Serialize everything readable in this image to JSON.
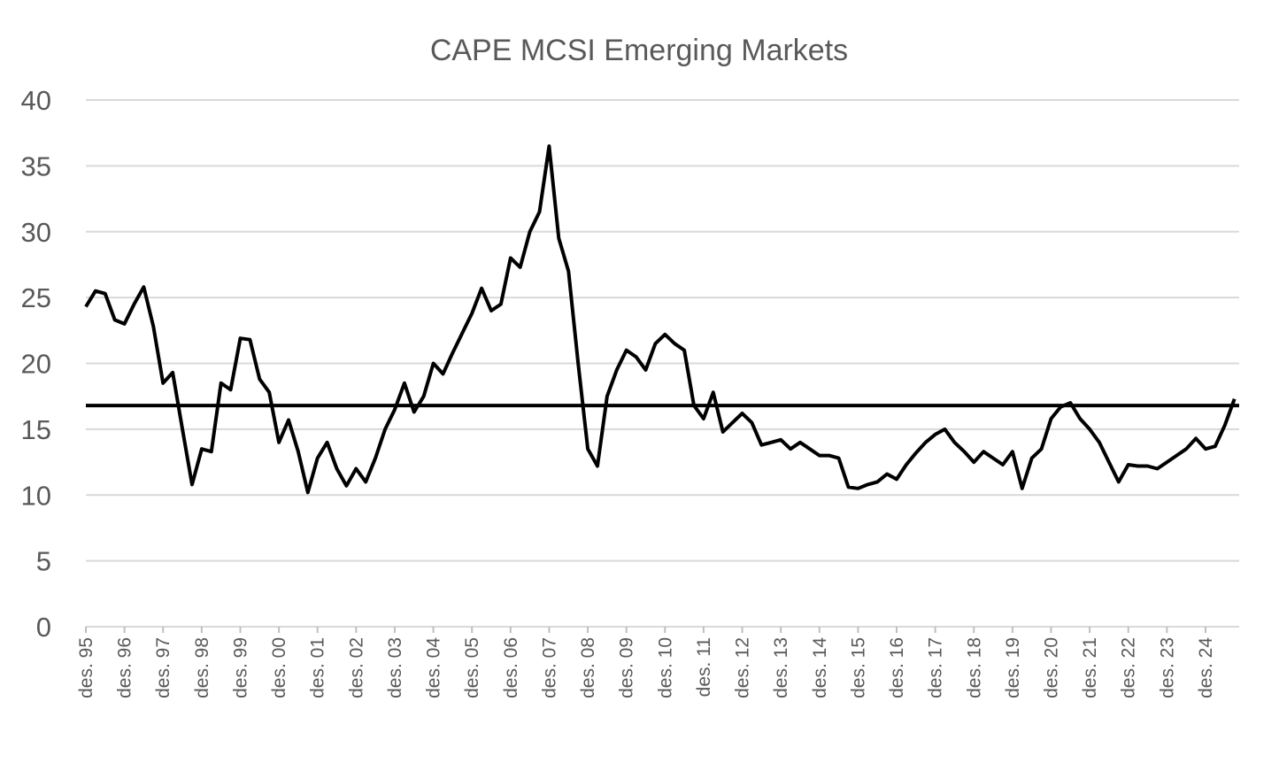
{
  "chart_data": {
    "type": "line",
    "title": "CAPE MCSI Emerging Markets",
    "categories": [
      "des. 95",
      null,
      null,
      null,
      "des. 96",
      null,
      null,
      null,
      "des. 97",
      null,
      null,
      null,
      "des. 98",
      null,
      null,
      null,
      "des. 99",
      null,
      null,
      null,
      "des. 00",
      null,
      null,
      null,
      "des. 01",
      null,
      null,
      null,
      "des. 02",
      null,
      null,
      null,
      "des. 03",
      null,
      null,
      null,
      "des. 04",
      null,
      null,
      null,
      "des. 05",
      null,
      null,
      null,
      "des. 06",
      null,
      null,
      null,
      "des. 07",
      null,
      null,
      null,
      "des. 08",
      null,
      null,
      null,
      "des. 09",
      null,
      null,
      null,
      "des. 10",
      null,
      null,
      null,
      "des. 11",
      null,
      null,
      null,
      "des. 12",
      null,
      null,
      null,
      "des. 13",
      null,
      null,
      null,
      "des. 14",
      null,
      null,
      null,
      "des. 15",
      null,
      null,
      null,
      "des. 16",
      null,
      null,
      null,
      "des. 17",
      null,
      null,
      null,
      "des. 18",
      null,
      null,
      null,
      "des. 19",
      null,
      null,
      null,
      "des. 20",
      null,
      null,
      null,
      "des. 21",
      null,
      null,
      null,
      "des. 22",
      null,
      null,
      null,
      "des. 23",
      null,
      null,
      null,
      "des. 24",
      null,
      null,
      null
    ],
    "series": [
      {
        "color": "#000000",
        "values": [
          24.3,
          25.5,
          25.3,
          23.3,
          23.0,
          24.5,
          25.8,
          22.8,
          18.5,
          19.3,
          15,
          10.8,
          13.5,
          13.3,
          18.5,
          18,
          21.9,
          21.8,
          18.8,
          17.8,
          14,
          15.7,
          13.3,
          10.2,
          12.8,
          14,
          12,
          10.7,
          12,
          11,
          12.8,
          15,
          16.5,
          18.5,
          16.3,
          17.5,
          20,
          19.2,
          20.8,
          22.3,
          23.8,
          25.7,
          24,
          24.5,
          28,
          27.3,
          30,
          31.5,
          36.5,
          29.5,
          27,
          20,
          13.5,
          12.2,
          17.5,
          19.5,
          21,
          20.5,
          19.5,
          21.5,
          22.2,
          21.5,
          21,
          16.8,
          15.8,
          17.8,
          14.8,
          15.5,
          16.2,
          15.5,
          13.8,
          14,
          14.2,
          13.5,
          14,
          13.5,
          13,
          13,
          12.8,
          10.6,
          10.5,
          10.8,
          11,
          11.6,
          11.2,
          12.3,
          13.2,
          14,
          14.6,
          15,
          14,
          13.3,
          12.5,
          13.3,
          12.8,
          12.3,
          13.3,
          10.5,
          12.8,
          13.5,
          15.8,
          16.7,
          17,
          15.8,
          15,
          14,
          12.5,
          11,
          12.3,
          12.2,
          12.2,
          12,
          12.5,
          13,
          13.5,
          14.3,
          13.5,
          13.7,
          15.3,
          17.3
        ]
      }
    ],
    "hline": 16.8,
    "ylim": [
      0,
      40
    ],
    "yticks": [
      0,
      5,
      10,
      15,
      20,
      25,
      30,
      35,
      40
    ],
    "grid": true
  }
}
